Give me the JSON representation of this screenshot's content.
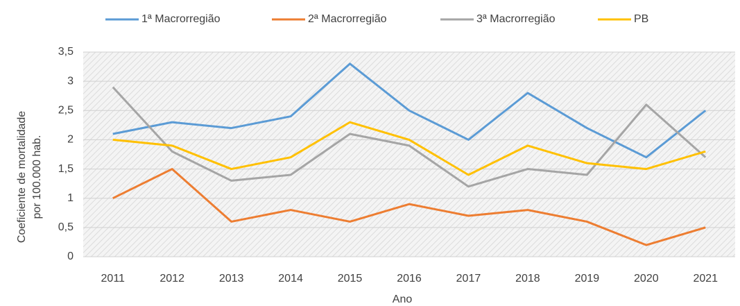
{
  "chart_data": {
    "type": "line",
    "xlabel": "Ano",
    "ylabel": [
      "Coeficiente de mortalidade",
      "por 100.000 hab."
    ],
    "categories": [
      "2011",
      "2012",
      "2013",
      "2014",
      "2015",
      "2016",
      "2017",
      "2018",
      "2019",
      "2020",
      "2021"
    ],
    "series": [
      {
        "name": "1ª Macrorregião",
        "color": "#5b9bd5",
        "values": [
          2.1,
          2.3,
          2.2,
          2.4,
          3.3,
          2.5,
          2.0,
          2.8,
          2.2,
          1.7,
          2.5
        ]
      },
      {
        "name": "2ª Macrorregião",
        "color": "#ed7d31",
        "values": [
          1.0,
          1.5,
          0.6,
          0.8,
          0.6,
          0.9,
          0.7,
          0.8,
          0.6,
          0.2,
          0.5
        ]
      },
      {
        "name": "3ª Macrorregião",
        "color": "#a5a5a5",
        "values": [
          2.9,
          1.8,
          1.3,
          1.4,
          2.1,
          1.9,
          1.2,
          1.5,
          1.4,
          2.6,
          1.7
        ]
      },
      {
        "name": "PB",
        "color": "#ffc000",
        "values": [
          2.0,
          1.9,
          1.5,
          1.7,
          2.3,
          2.0,
          1.4,
          1.9,
          1.6,
          1.5,
          1.8
        ]
      }
    ],
    "ylim": [
      0,
      3.5
    ],
    "yticks": [
      0,
      {
        "value": 0.5,
        "label": "0,5"
      },
      1,
      {
        "value": 1.5,
        "label": "1,5"
      },
      2,
      {
        "value": 2.5,
        "label": "2,5"
      },
      3,
      {
        "value": 3.5,
        "label": "3,5"
      }
    ],
    "grid": true,
    "legend": "top"
  }
}
